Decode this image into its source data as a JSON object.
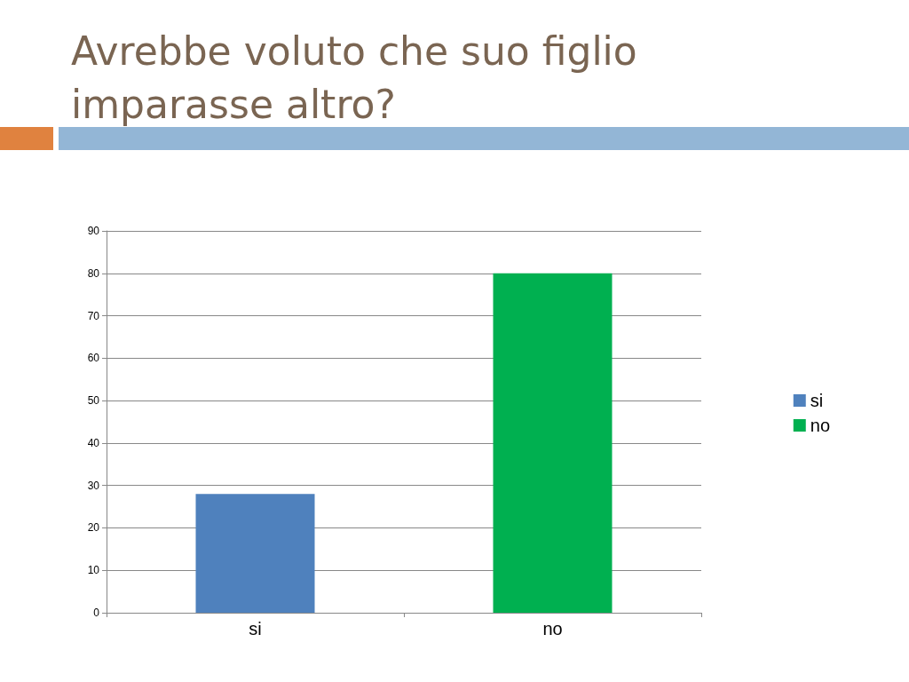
{
  "chart_data": {
    "type": "bar",
    "title": "Avrebbe voluto che suo figlio imparasse altro?",
    "categories": [
      "si",
      "no"
    ],
    "series": [
      {
        "name": "si",
        "color": "#4f81bd",
        "values": [
          28,
          null
        ]
      },
      {
        "name": "no",
        "color": "#00b050",
        "values": [
          null,
          80
        ]
      }
    ],
    "ylim": [
      0,
      90
    ],
    "yticks": [
      0,
      10,
      20,
      30,
      40,
      50,
      60,
      70,
      80,
      90
    ],
    "grid": "y",
    "legend": "right"
  }
}
